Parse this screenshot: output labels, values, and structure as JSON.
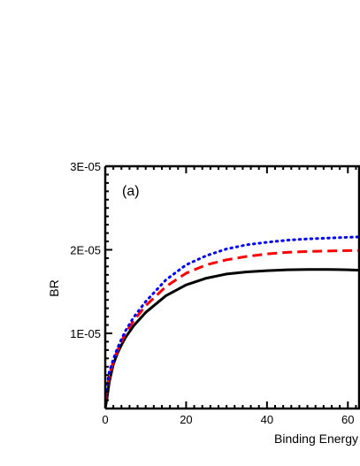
{
  "chart_data": {
    "type": "line",
    "panel_label": "(a)",
    "title": "",
    "xlabel": "Binding Energy",
    "ylabel": "BR",
    "xlim": [
      0,
      63
    ],
    "ylim": [
      1e-06,
      3e-05
    ],
    "x_ticks": [
      0,
      20,
      40,
      60
    ],
    "x_tick_labels": [
      "0",
      "20",
      "40",
      "60"
    ],
    "y_ticks": [
      1e-05,
      2e-05,
      3e-05
    ],
    "y_tick_labels": [
      "1E-05",
      "2E-05",
      "3E-05"
    ],
    "grid": false,
    "legend": "none",
    "series": [
      {
        "color": "#000000",
        "style": "solid",
        "x": [
          0,
          0.5,
          1,
          2,
          3,
          4,
          5,
          7,
          10,
          15,
          20,
          25,
          30,
          35,
          40,
          45,
          50,
          55,
          60,
          63
        ],
        "y": [
          1e-06,
          2.5e-06,
          4.2e-06,
          6.3e-06,
          7.6e-06,
          8.6e-06,
          9.5e-06,
          1.09e-05,
          1.25e-05,
          1.45e-05,
          1.58e-05,
          1.66e-05,
          1.71e-05,
          1.735e-05,
          1.75e-05,
          1.76e-05,
          1.765e-05,
          1.765e-05,
          1.76e-05,
          1.755e-05
        ]
      },
      {
        "color": "#ff0000",
        "style": "dashed",
        "x": [
          0,
          0.5,
          1,
          2,
          3,
          4,
          5,
          7,
          10,
          15,
          20,
          25,
          30,
          35,
          40,
          45,
          50,
          55,
          60,
          63
        ],
        "y": [
          2e-06,
          3.5e-06,
          5e-06,
          6.6e-06,
          7.9e-06,
          9e-06,
          1e-05,
          1.15e-05,
          1.33e-05,
          1.56e-05,
          1.72e-05,
          1.82e-05,
          1.88e-05,
          1.92e-05,
          1.95e-05,
          1.97e-05,
          1.98e-05,
          1.985e-05,
          1.99e-05,
          1.99e-05
        ]
      },
      {
        "color": "#0000ff",
        "style": "dotted",
        "x": [
          0,
          0.5,
          1,
          2,
          3,
          4,
          5,
          7,
          10,
          15,
          20,
          25,
          30,
          35,
          40,
          45,
          50,
          55,
          60,
          63
        ],
        "y": [
          2.5e-06,
          4e-06,
          5.4e-06,
          6.9e-06,
          8.2e-06,
          9.3e-06,
          1.03e-05,
          1.19e-05,
          1.38e-05,
          1.64e-05,
          1.82e-05,
          1.93e-05,
          2.01e-05,
          2.06e-05,
          2.09e-05,
          2.115e-05,
          2.13e-05,
          2.14e-05,
          2.15e-05,
          2.155e-05
        ]
      }
    ]
  }
}
